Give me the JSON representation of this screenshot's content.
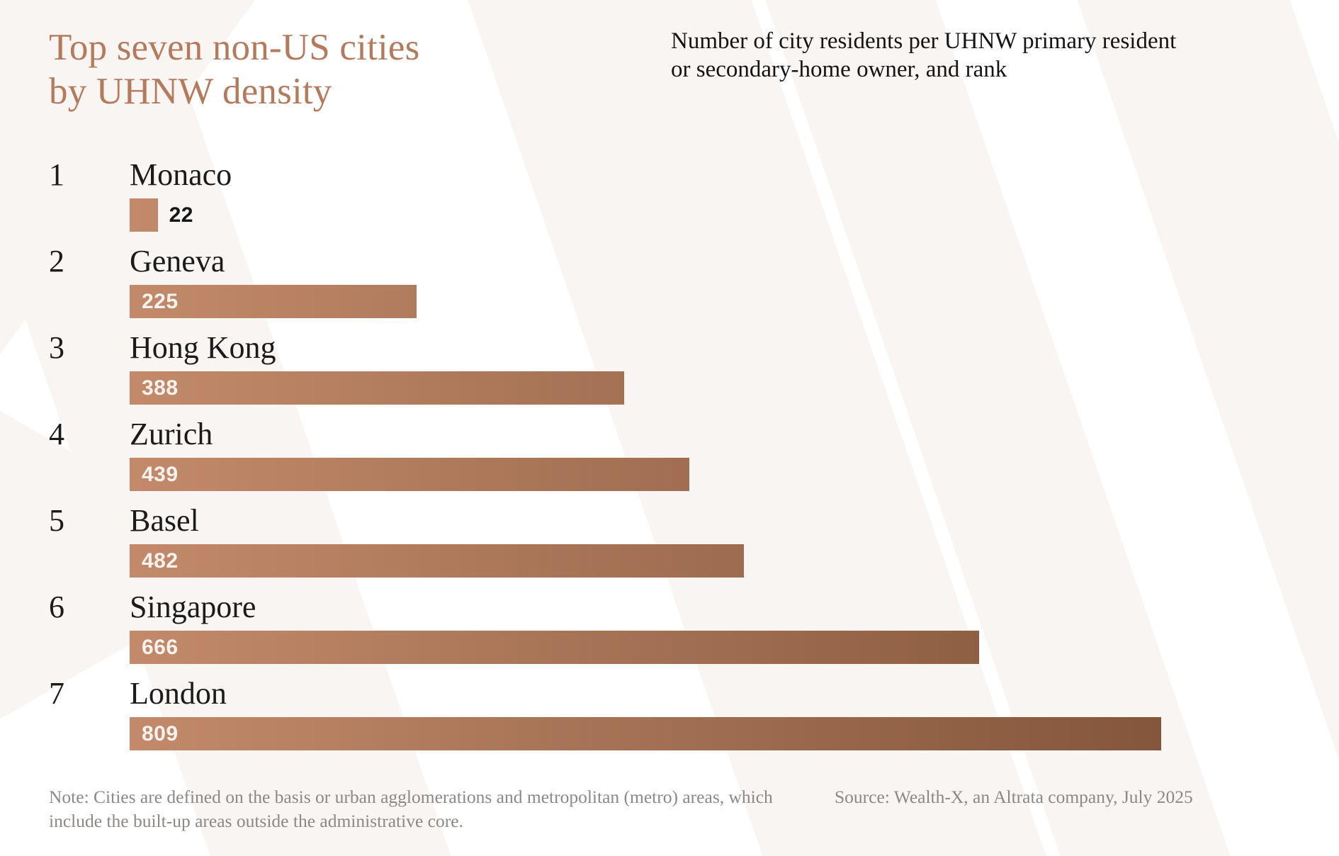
{
  "header": {
    "title_line1": "Top seven non-US cities",
    "title_line2": "by UHNW density",
    "subtitle": "Number of city residents per UHNW primary resident or secondary-home owner, and rank"
  },
  "chart_data": {
    "type": "bar",
    "orientation": "horizontal",
    "title": "Top seven non-US cities by UHNW density",
    "subtitle": "Number of city residents per UHNW primary resident or secondary-home owner, and rank",
    "categories": [
      "Monaco",
      "Geneva",
      "Hong Kong",
      "Zurich",
      "Basel",
      "Singapore",
      "London"
    ],
    "ranks": [
      1,
      2,
      3,
      4,
      5,
      6,
      7
    ],
    "values": [
      22,
      225,
      388,
      439,
      482,
      666,
      809
    ],
    "xlim": [
      0,
      809
    ],
    "grid": false,
    "legend": false,
    "value_labels": "at bar start, white inside bar; dark outside bar when bar is too short"
  },
  "footer": {
    "note": "Note: Cities are defined on the basis or urban agglomerations and metropolitan (metro) areas, which include the built-up areas outside the administrative core.",
    "source": "Source: Wealth-X, an Altrata company, July 2025"
  },
  "colors": {
    "title": "#b5795c",
    "text_dark": "#1b1b1b",
    "muted_gray": "#8c8884",
    "bar_gradient_start": "#c28a6a",
    "bar_gradient_end": "#84563c",
    "background_stripe": "#f8f5f3",
    "value_inside": "#f8f2ee"
  }
}
